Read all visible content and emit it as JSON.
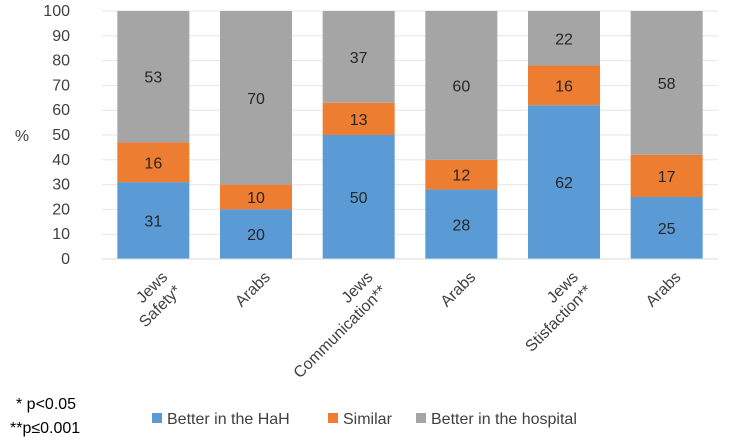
{
  "chart_data": {
    "type": "bar",
    "stacked": true,
    "ylabel": "%",
    "ylim": [
      0,
      100
    ],
    "ytick_step": 10,
    "categories": [
      [
        "Jews",
        "Safety*"
      ],
      [
        "Arabs"
      ],
      [
        "Jews",
        "Communication**"
      ],
      [
        "Arabs"
      ],
      [
        "Jews",
        "Stisfaction**"
      ],
      [
        "Arabs"
      ]
    ],
    "series": [
      {
        "name": "Better in the HaH",
        "color": "#5b9bd5",
        "values": [
          31,
          20,
          50,
          28,
          62,
          25
        ]
      },
      {
        "name": "Similar",
        "color": "#ed7d31",
        "values": [
          16,
          10,
          13,
          12,
          16,
          17
        ]
      },
      {
        "name": "Better in the hospital",
        "color": "#a5a5a5",
        "values": [
          53,
          70,
          37,
          60,
          22,
          58
        ]
      }
    ],
    "legend_position": "bottom"
  },
  "footnotes": [
    "* p<0.05",
    "**p≤0.001"
  ]
}
